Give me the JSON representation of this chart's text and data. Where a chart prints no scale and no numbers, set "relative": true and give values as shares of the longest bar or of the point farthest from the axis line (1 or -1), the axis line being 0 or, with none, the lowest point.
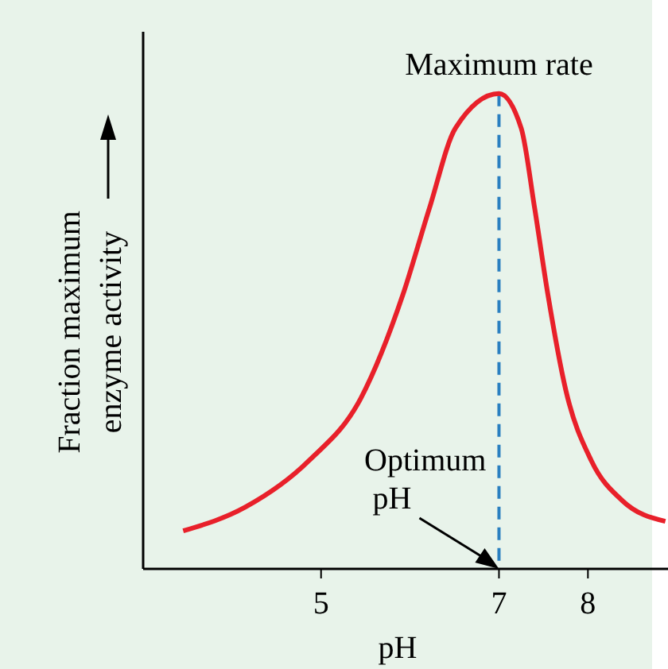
{
  "chart_data": {
    "type": "line",
    "relative": true,
    "xlabel": "pH",
    "ylabel": "Fraction maximum\nenzyme activity",
    "x": [
      3.45,
      4.15,
      4.86,
      5.45,
      5.92,
      6.22,
      6.51,
      7,
      7.25,
      7.4,
      7.55,
      7.75,
      8.04,
      8.39,
      8.87
    ],
    "series": [
      {
        "color": "#e8202a",
        "values": [
          0.08,
          0.13,
          0.227,
          0.36,
          0.577,
          0.76,
          0.927,
          1,
          0.927,
          0.76,
          0.577,
          0.377,
          0.227,
          0.143,
          0.1
        ]
      }
    ],
    "xlim": [
      3,
      8.9
    ],
    "xticks": [
      5,
      7,
      8
    ],
    "ref_lines": [
      {
        "axis": "x",
        "value": 7,
        "color": "#2a7fc0",
        "line_style": "dashed"
      }
    ],
    "annotations": [
      {
        "text": "Maximum rate",
        "x": 7,
        "y": 1
      },
      {
        "text": "Optimum\npH",
        "x": 7,
        "y": 0
      }
    ],
    "grid": false,
    "line_style": "solid"
  }
}
